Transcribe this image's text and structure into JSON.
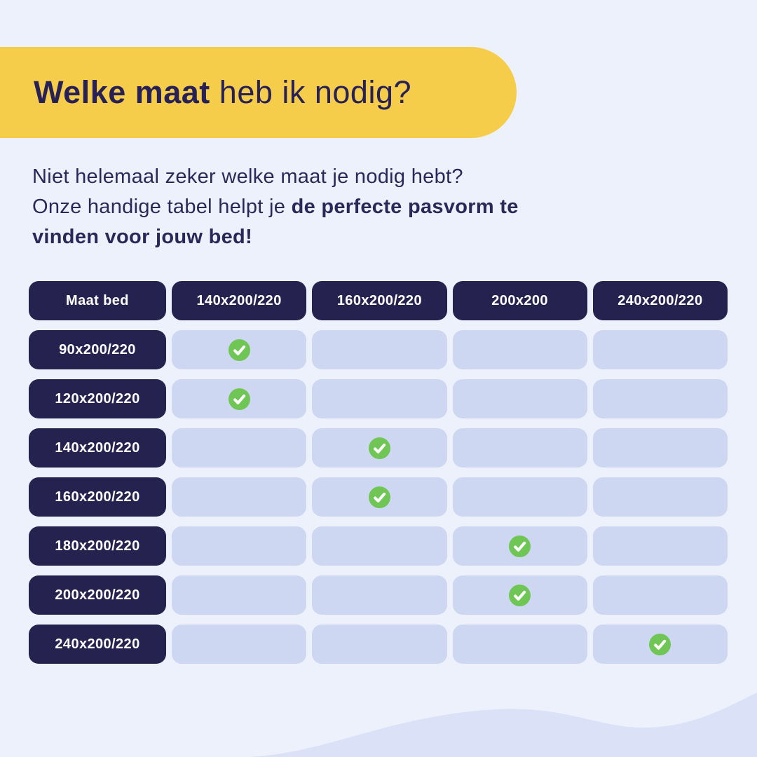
{
  "theme": {
    "background": "#EDF1FC",
    "banner_yellow": "#F6CD4A",
    "navy": "#262250",
    "title_navy": "#272158",
    "cell_lavender": "#CED7F2",
    "wave_lavender": "#DBE1F6",
    "check_green": "#70C654",
    "check_mark_white": "#FFFFFF"
  },
  "banner": {
    "title_bold": "Welke maat",
    "title_regular": " heb ik nodig?"
  },
  "intro": {
    "line1": "Niet helemaal zeker welke maat je nodig hebt?",
    "line2_regular": "Onze handige tabel helpt je ",
    "line2_bold": "de perfecte pasvorm te",
    "line3_bold": "vinden voor jouw bed!"
  },
  "icons": {
    "check": "check-circle-icon"
  },
  "chart_data": {
    "type": "table",
    "title": "Welke maat heb ik nodig?",
    "columns": [
      "Maat bed",
      "140x200/220",
      "160x200/220",
      "200x200",
      "240x200/220"
    ],
    "rows": [
      {
        "bed_size": "90x200/220",
        "fits": "140x200/220",
        "checks": [
          true,
          false,
          false,
          false
        ]
      },
      {
        "bed_size": "120x200/220",
        "fits": "140x200/220",
        "checks": [
          true,
          false,
          false,
          false
        ]
      },
      {
        "bed_size": "140x200/220",
        "fits": "160x200/220",
        "checks": [
          false,
          true,
          false,
          false
        ]
      },
      {
        "bed_size": "160x200/220",
        "fits": "160x200/220",
        "checks": [
          false,
          true,
          false,
          false
        ]
      },
      {
        "bed_size": "180x200/220",
        "fits": "200x200",
        "checks": [
          false,
          false,
          true,
          false
        ]
      },
      {
        "bed_size": "200x200/220",
        "fits": "200x200",
        "checks": [
          false,
          false,
          true,
          false
        ]
      },
      {
        "bed_size": "240x200/220",
        "fits": "240x200/220",
        "checks": [
          false,
          false,
          false,
          true
        ]
      }
    ]
  }
}
